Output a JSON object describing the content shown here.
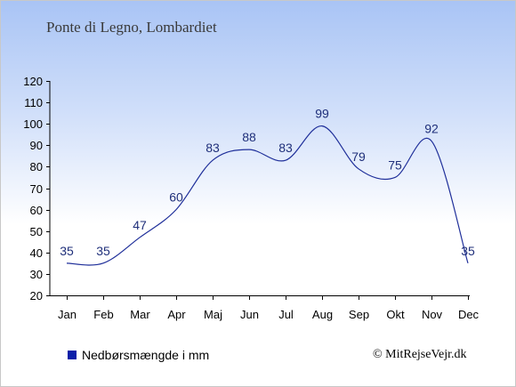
{
  "chart_data": {
    "type": "line",
    "title": "Ponte di Legno, Lombardiet",
    "categories": [
      "Jan",
      "Feb",
      "Mar",
      "Apr",
      "Maj",
      "Jun",
      "Jul",
      "Aug",
      "Sep",
      "Okt",
      "Nov",
      "Dec"
    ],
    "series": [
      {
        "name": "Nedbørsmængde i mm",
        "values": [
          35,
          35,
          47,
          60,
          83,
          88,
          83,
          99,
          79,
          75,
          92,
          35
        ]
      }
    ],
    "ylim": [
      20,
      120
    ],
    "yticks": [
      20,
      30,
      40,
      50,
      60,
      70,
      80,
      90,
      100,
      110,
      120
    ],
    "grid": false,
    "legend_position": "bottom-left",
    "line_color": "#1f2f9a",
    "legend_color": "#0a1fa8"
  },
  "credit": "© MitRejseVejr.dk"
}
